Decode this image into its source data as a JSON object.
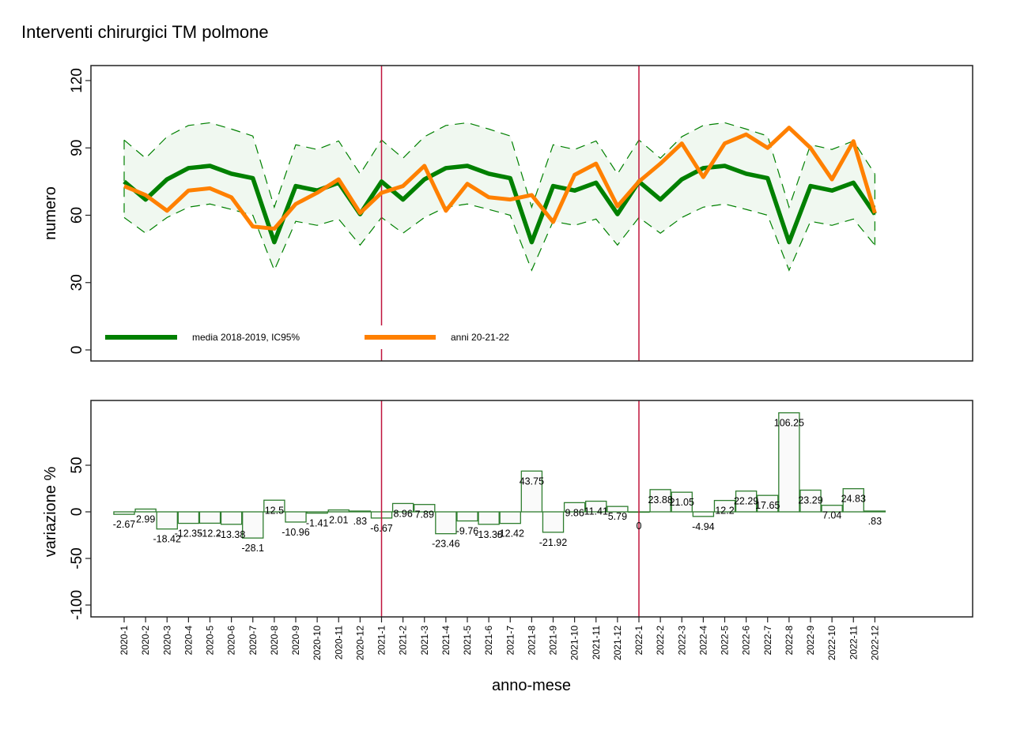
{
  "chart_data": [
    {
      "type": "line",
      "title": "Interventi chirurgici TM polmone",
      "ylabel": "numero",
      "xlabel": "",
      "ylim": [
        -4,
        126
      ],
      "yticks": [
        0,
        30,
        60,
        90,
        120
      ],
      "grid": false,
      "legend_placement": "bottom-left",
      "categories": [
        "2020-1",
        "2020-2",
        "2020-3",
        "2020-4",
        "2020-5",
        "2020-6",
        "2020-7",
        "2020-8",
        "2020-9",
        "2020-10",
        "2020-11",
        "2020-12",
        "2021-1",
        "2021-2",
        "2021-3",
        "2021-4",
        "2021-5",
        "2021-6",
        "2021-7",
        "2021-8",
        "2021-9",
        "2021-10",
        "2021-11",
        "2021-12",
        "2022-1",
        "2022-2",
        "2022-3",
        "2022-4",
        "2022-5",
        "2022-6",
        "2022-7",
        "2022-8",
        "2022-9",
        "2022-10",
        "2022-11",
        "2022-12"
      ],
      "series": [
        {
          "name": "media 2018-2019, IC95%",
          "color": "#008000",
          "values": [
            75,
            67,
            76,
            81,
            82,
            78.5,
            76.5,
            48,
            73,
            71,
            74.5,
            60.5,
            75,
            67,
            76,
            81,
            82,
            78.5,
            76.5,
            48,
            73,
            71,
            74.5,
            60.5,
            75,
            67,
            76,
            81,
            82,
            78.5,
            76.5,
            48,
            73,
            71,
            74.5,
            60.5
          ],
          "ci_upper": [
            93.5,
            85.4,
            95,
            100,
            101.2,
            98.4,
            95.3,
            63.6,
            91.4,
            89.3,
            93.1,
            78.4,
            93.5,
            85.4,
            95,
            100,
            101.2,
            98.4,
            95.3,
            63.6,
            91.4,
            89.3,
            93.1,
            78.4,
            93.5,
            85.4,
            95,
            100,
            101.2,
            98.4,
            95.3,
            63.6,
            91.4,
            89.3,
            93.1,
            78.4
          ],
          "ci_lower": [
            59,
            52,
            59,
            63.6,
            65,
            62.6,
            60,
            35.5,
            57.3,
            55.5,
            58.3,
            46.7,
            59,
            52,
            59,
            63.6,
            65,
            62.6,
            60,
            35.5,
            57.3,
            55.5,
            58.3,
            46.7,
            59,
            52,
            59,
            63.6,
            65,
            62.6,
            60,
            35.5,
            57.3,
            55.5,
            58.3,
            46.7
          ]
        },
        {
          "name": "anni 20-21-22",
          "color": "#ff8000",
          "values": [
            73,
            69,
            62,
            71,
            72,
            68,
            55,
            54,
            65,
            70,
            76,
            61,
            70,
            73,
            82,
            62,
            74,
            68,
            67,
            69,
            57,
            78,
            83,
            64,
            75,
            83,
            92,
            77,
            92,
            96,
            90,
            99,
            90,
            76,
            93,
            61
          ]
        }
      ],
      "vlines_at": [
        "2021-1",
        "2022-1"
      ],
      "vline_color": "#c0143c",
      "ci_fill_color": "#f0f8f0"
    },
    {
      "type": "bar",
      "title": "",
      "ylabel": "variazione %",
      "xlabel": "anno-mese",
      "ylim": [
        -113,
        108
      ],
      "yticks": [
        -100,
        -50,
        0,
        50
      ],
      "grid": false,
      "categories": [
        "2020-1",
        "2020-2",
        "2020-3",
        "2020-4",
        "2020-5",
        "2020-6",
        "2020-7",
        "2020-8",
        "2020-9",
        "2020-10",
        "2020-11",
        "2020-12",
        "2021-1",
        "2021-2",
        "2021-3",
        "2021-4",
        "2021-5",
        "2021-6",
        "2021-7",
        "2021-8",
        "2021-9",
        "2021-10",
        "2021-11",
        "2021-12",
        "2022-1",
        "2022-2",
        "2022-3",
        "2022-4",
        "2022-5",
        "2022-6",
        "2022-7",
        "2022-8",
        "2022-9",
        "2022-10",
        "2022-11",
        "2022-12"
      ],
      "values": [
        -2.67,
        2.99,
        -18.42,
        -12.35,
        -12.2,
        -13.38,
        -28.1,
        12.5,
        -10.96,
        -1.41,
        2.01,
        0.83,
        -6.67,
        8.96,
        7.89,
        -23.46,
        -9.76,
        -13.38,
        -12.42,
        43.75,
        -21.92,
        9.86,
        11.41,
        5.79,
        0,
        23.88,
        21.05,
        -4.94,
        12.2,
        22.29,
        17.65,
        106.25,
        23.29,
        7.04,
        24.83,
        0.83
      ],
      "data_labels": [
        "-2.67",
        "2.99",
        "-18.42",
        "-12.35",
        "-12.2",
        "-13.38",
        "-28.1",
        "12.5",
        "-10.96",
        "-1.41",
        "2.01",
        ".83",
        "-6.67",
        "8.96",
        "7.89",
        "-23.46",
        "-9.76",
        "-13.38",
        "-12.42",
        "43.75",
        "-21.92",
        "9.86",
        "11.41",
        "5.79",
        "0",
        "23.88",
        "21.05",
        "-4.94",
        "12.2",
        "22.29",
        "17.65",
        "106.25",
        "23.29",
        "7.04",
        "24.83",
        ".83"
      ],
      "bar_color": "#2e7d2e",
      "bar_fill": "#fafafa",
      "vlines_at": [
        "2021-1",
        "2022-1"
      ],
      "vline_color": "#c0143c"
    }
  ]
}
